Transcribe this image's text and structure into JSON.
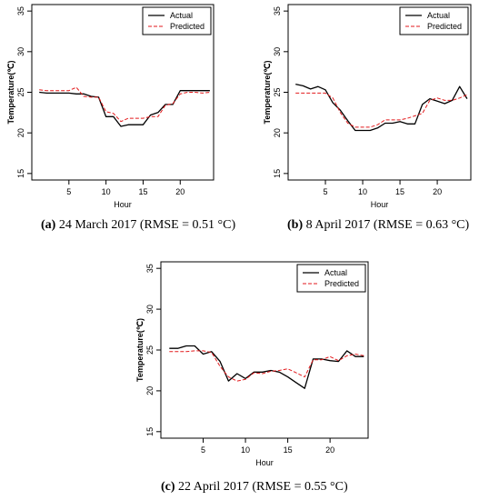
{
  "chart_data": [
    {
      "type": "line",
      "caption_letter": "(a)",
      "caption_text": " 24 March 2017 (RMSE = 0.51 °C)",
      "xlabel": "Hour",
      "ylabel": "Temperature(℃)",
      "xlim": [
        0,
        24.5
      ],
      "ylim": [
        14.2,
        35.8
      ],
      "xticks": [
        5,
        10,
        15,
        20
      ],
      "yticks": [
        15,
        20,
        25,
        30,
        35
      ],
      "legend": "top-right",
      "x": [
        1,
        2,
        3,
        4,
        5,
        6,
        7,
        8,
        9,
        10,
        11,
        12,
        13,
        14,
        15,
        16,
        17,
        18,
        19,
        20,
        21,
        22,
        23,
        24
      ],
      "series": [
        {
          "name": "Actual",
          "color": "#000000",
          "style": "solid",
          "values": [
            25.0,
            24.9,
            24.9,
            24.9,
            24.9,
            24.8,
            24.8,
            24.5,
            24.4,
            22.0,
            22.0,
            20.8,
            21.0,
            21.0,
            21.0,
            22.2,
            22.5,
            23.5,
            23.5,
            25.2,
            25.2,
            25.2,
            25.2,
            25.2
          ]
        },
        {
          "name": "Predicted",
          "color": "#e31a1c",
          "style": "dashed",
          "values": [
            25.3,
            25.2,
            25.2,
            25.2,
            25.2,
            25.6,
            24.5,
            24.4,
            24.4,
            22.6,
            22.4,
            21.4,
            21.8,
            21.8,
            21.8,
            22.0,
            22.0,
            23.4,
            23.6,
            24.8,
            25.0,
            25.0,
            24.9,
            25.0
          ]
        }
      ]
    },
    {
      "type": "line",
      "caption_letter": "(b)",
      "caption_text": " 8 April 2017 (RMSE = 0.63 °C)",
      "xlabel": "Hour",
      "ylabel": "Temperature(℃)",
      "xlim": [
        0,
        24.5
      ],
      "ylim": [
        14.2,
        35.8
      ],
      "xticks": [
        5,
        10,
        15,
        20
      ],
      "yticks": [
        15,
        20,
        25,
        30,
        35
      ],
      "legend": "top-right",
      "x": [
        1,
        2,
        3,
        4,
        5,
        6,
        7,
        8,
        9,
        10,
        11,
        12,
        13,
        14,
        15,
        16,
        17,
        18,
        19,
        20,
        21,
        22,
        23,
        24
      ],
      "series": [
        {
          "name": "Actual",
          "color": "#000000",
          "style": "solid",
          "values": [
            26.0,
            25.8,
            25.4,
            25.7,
            25.3,
            23.7,
            22.8,
            21.5,
            20.3,
            20.3,
            20.3,
            20.6,
            21.2,
            21.2,
            21.4,
            21.1,
            21.1,
            23.5,
            24.2,
            23.9,
            23.6,
            24.0,
            25.7,
            24.2
          ]
        },
        {
          "name": "Predicted",
          "color": "#e31a1c",
          "style": "dashed",
          "values": [
            24.9,
            24.9,
            24.9,
            24.9,
            24.9,
            24.3,
            22.5,
            21.2,
            20.7,
            20.7,
            20.7,
            21.0,
            21.6,
            21.6,
            21.6,
            21.8,
            22.1,
            22.4,
            24.0,
            24.3,
            24.0,
            24.0,
            24.3,
            24.7
          ]
        }
      ]
    },
    {
      "type": "line",
      "caption_letter": "(c)",
      "caption_text": " 22 April 2017 (RMSE = 0.55 °C)",
      "xlabel": "Hour",
      "ylabel": "Temperature(℃)",
      "xlim": [
        0,
        24.5
      ],
      "ylim": [
        14.2,
        35.8
      ],
      "xticks": [
        5,
        10,
        15,
        20
      ],
      "yticks": [
        15,
        20,
        25,
        30,
        35
      ],
      "legend": "top-right",
      "x": [
        1,
        2,
        3,
        4,
        5,
        6,
        7,
        8,
        9,
        10,
        11,
        12,
        13,
        14,
        15,
        16,
        17,
        18,
        19,
        20,
        21,
        22,
        23,
        24
      ],
      "series": [
        {
          "name": "Actual",
          "color": "#000000",
          "style": "solid",
          "values": [
            25.2,
            25.2,
            25.5,
            25.5,
            24.5,
            24.8,
            23.6,
            21.2,
            22.1,
            21.5,
            22.3,
            22.3,
            22.5,
            22.3,
            21.7,
            21.0,
            20.3,
            23.9,
            23.9,
            23.7,
            23.6,
            24.9,
            24.2,
            24.2
          ]
        },
        {
          "name": "Predicted",
          "color": "#e31a1c",
          "style": "dashed",
          "values": [
            24.8,
            24.8,
            24.8,
            24.9,
            24.9,
            24.7,
            23.0,
            21.7,
            21.2,
            21.4,
            22.2,
            22.1,
            22.4,
            22.5,
            22.7,
            22.2,
            21.7,
            23.8,
            23.8,
            24.2,
            23.7,
            24.3,
            24.5,
            24.3
          ]
        }
      ]
    }
  ]
}
